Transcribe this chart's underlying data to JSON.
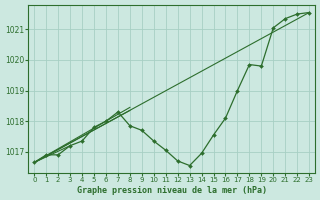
{
  "title": "Graphe pression niveau de la mer (hPa)",
  "background_color": "#cce8e0",
  "grid_color": "#a8cfc4",
  "line_color": "#2d6e2d",
  "xlim": [
    -0.5,
    23.5
  ],
  "ylim": [
    1016.3,
    1021.8
  ],
  "yticks": [
    1017,
    1018,
    1019,
    1020,
    1021
  ],
  "xticks": [
    0,
    1,
    2,
    3,
    4,
    5,
    6,
    7,
    8,
    9,
    10,
    11,
    12,
    13,
    14,
    15,
    16,
    17,
    18,
    19,
    20,
    21,
    22,
    23
  ],
  "straight_lines": [
    {
      "x0": 0,
      "y0": 1016.65,
      "x1": 23,
      "y1": 1021.55
    },
    {
      "x0": 0,
      "y0": 1016.65,
      "x1": 3,
      "y1": 1017.2
    },
    {
      "x0": 0,
      "y0": 1016.65,
      "x1": 8,
      "y1": 1018.35
    },
    {
      "x0": 0,
      "y0": 1016.65,
      "x1": 8,
      "y1": 1018.45
    }
  ],
  "main_series_x": [
    0,
    1,
    2,
    3,
    4,
    5,
    6,
    7,
    8,
    9,
    10,
    11,
    12,
    13,
    14,
    15,
    16,
    17,
    18,
    19,
    20,
    21,
    22,
    23
  ],
  "main_series_y": [
    1016.65,
    1016.9,
    1016.9,
    1017.2,
    1017.35,
    1017.8,
    1018.0,
    1018.3,
    1017.85,
    1017.7,
    1017.35,
    1017.05,
    1016.7,
    1016.55,
    1016.95,
    1017.55,
    1018.1,
    1019.0,
    1019.85,
    1019.8,
    1021.05,
    1021.35,
    1021.5,
    1021.55
  ],
  "xlabel_fontsize": 6,
  "tick_fontsize": 5
}
